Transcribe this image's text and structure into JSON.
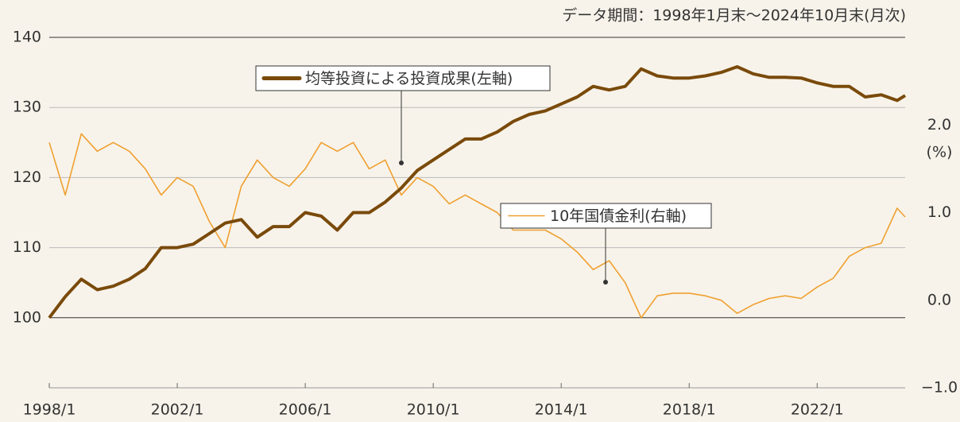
{
  "chart_data": {
    "type": "line",
    "note": "データ期間：1998年1月末～2024年10月末(月次)",
    "y2_unit_label": "(%)",
    "x": [
      "1998/1",
      "1998/7",
      "1999/1",
      "1999/7",
      "2000/1",
      "2000/7",
      "2001/1",
      "2001/7",
      "2002/1",
      "2002/7",
      "2003/1",
      "2003/7",
      "2004/1",
      "2004/7",
      "2005/1",
      "2005/7",
      "2006/1",
      "2006/7",
      "2007/1",
      "2007/7",
      "2008/1",
      "2008/7",
      "2009/1",
      "2009/7",
      "2010/1",
      "2010/7",
      "2011/1",
      "2011/7",
      "2012/1",
      "2012/7",
      "2013/1",
      "2013/7",
      "2014/1",
      "2014/7",
      "2015/1",
      "2015/7",
      "2016/1",
      "2016/7",
      "2017/1",
      "2017/7",
      "2018/1",
      "2018/7",
      "2019/1",
      "2019/7",
      "2020/1",
      "2020/7",
      "2021/1",
      "2021/7",
      "2022/1",
      "2022/7",
      "2023/1",
      "2023/7",
      "2024/1",
      "2024/7",
      "2024/10"
    ],
    "series": [
      {
        "name": "均等投資による投資成果(左軸)",
        "color": "#7a4a0a",
        "axis": "y",
        "values": [
          100,
          103,
          105.5,
          104,
          104.5,
          105.5,
          107,
          110,
          110,
          110.5,
          112,
          113.5,
          114,
          111.5,
          113,
          113,
          115,
          114.5,
          112.5,
          115,
          115,
          116.5,
          118.5,
          121,
          122.5,
          124,
          125.5,
          125.5,
          126.5,
          128,
          129,
          129.5,
          130.5,
          131.5,
          133,
          132.5,
          133,
          135.5,
          134.5,
          134.2,
          134.2,
          134.5,
          135,
          135.8,
          134.8,
          134.3,
          134.3,
          134.2,
          133.5,
          133,
          133,
          131.5,
          131.8,
          131,
          131.7
        ]
      },
      {
        "name": "10年国債金利(右軸)",
        "color": "#f0a030",
        "axis": "y2",
        "values": [
          1.8,
          1.2,
          1.9,
          1.7,
          1.8,
          1.7,
          1.5,
          1.2,
          1.4,
          1.3,
          0.9,
          0.6,
          1.3,
          1.6,
          1.4,
          1.3,
          1.5,
          1.8,
          1.7,
          1.8,
          1.5,
          1.6,
          1.2,
          1.4,
          1.3,
          1.1,
          1.2,
          1.1,
          1.0,
          0.8,
          0.8,
          0.8,
          0.7,
          0.55,
          0.35,
          0.45,
          0.2,
          -0.2,
          0.05,
          0.08,
          0.08,
          0.05,
          0.0,
          -0.15,
          -0.05,
          0.02,
          0.05,
          0.02,
          0.15,
          0.25,
          0.5,
          0.6,
          0.65,
          1.05,
          0.95
        ]
      }
    ],
    "xlim": [
      "1998/1",
      "2024/10"
    ],
    "xticks": [
      "1998/1",
      "2002/1",
      "2006/1",
      "2010/1",
      "2014/1",
      "2018/1",
      "2022/1"
    ],
    "ylim": [
      90,
      140
    ],
    "yticks": [
      100,
      110,
      120,
      130,
      140
    ],
    "y2lim": [
      -1,
      3
    ],
    "y2ticks": [
      {
        "value": -1,
        "label": "−1.0"
      },
      {
        "value": 0,
        "label": "0.0"
      },
      {
        "value": 1,
        "label": "1.0"
      },
      {
        "value": 2,
        "label": "2.0"
      }
    ],
    "grid": true
  }
}
